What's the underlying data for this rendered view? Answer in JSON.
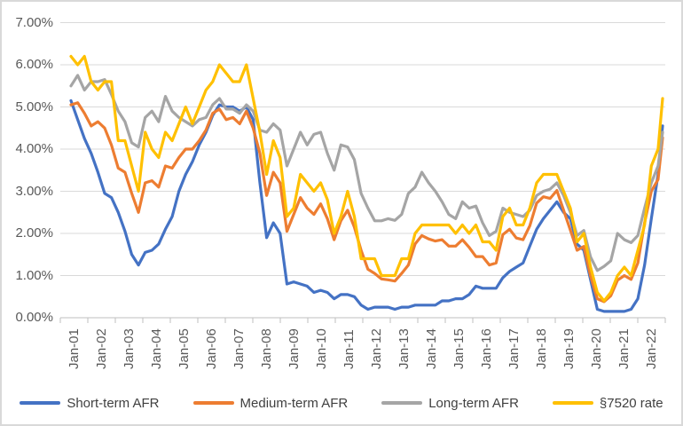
{
  "chart_data": {
    "type": "line",
    "title": "",
    "legend_position": "bottom",
    "gridlines": true,
    "y_axis": {
      "min": 0,
      "max": 7,
      "format": "percent",
      "tick_labels": [
        "7.00%",
        "6.00%",
        "5.00%",
        "4.00%",
        "3.00%",
        "2.00%",
        "1.00%",
        "0.00%"
      ]
    },
    "x_axis": {
      "tick_labels": [
        "Jan-01",
        "Jan-02",
        "Jan-03",
        "Jan-04",
        "Jan-05",
        "Jan-06",
        "Jan-07",
        "Jan-08",
        "Jan-09",
        "Jan-10",
        "Jan-11",
        "Jan-12",
        "Jan-13",
        "Jan-14",
        "Jan-15",
        "Jan-16",
        "Jan-17",
        "Jan-18",
        "Jan-19",
        "Jan-20",
        "Jan-21",
        "Jan-22"
      ]
    },
    "sample_labels": [
      "Jan-01",
      "Apr-01",
      "Jul-01",
      "Oct-01",
      "Jan-02",
      "Apr-02",
      "Jul-02",
      "Oct-02",
      "Jan-03",
      "Apr-03",
      "Jul-03",
      "Oct-03",
      "Jan-04",
      "Apr-04",
      "Jul-04",
      "Oct-04",
      "Jan-05",
      "Apr-05",
      "Jul-05",
      "Oct-05",
      "Jan-06",
      "Apr-06",
      "Jul-06",
      "Oct-06",
      "Jan-07",
      "Apr-07",
      "Jul-07",
      "Oct-07",
      "Jan-08",
      "Apr-08",
      "Jul-08",
      "Oct-08",
      "Jan-09",
      "Apr-09",
      "Jul-09",
      "Oct-09",
      "Jan-10",
      "Apr-10",
      "Jul-10",
      "Oct-10",
      "Jan-11",
      "Apr-11",
      "Jul-11",
      "Oct-11",
      "Jan-12",
      "Apr-12",
      "Jul-12",
      "Oct-12",
      "Jan-13",
      "Apr-13",
      "Jul-13",
      "Oct-13",
      "Jan-14",
      "Apr-14",
      "Jul-14",
      "Oct-14",
      "Jan-15",
      "Apr-15",
      "Jul-15",
      "Oct-15",
      "Jan-16",
      "Apr-16",
      "Jul-16",
      "Oct-16",
      "Jan-17",
      "Apr-17",
      "Jul-17",
      "Oct-17",
      "Jan-18",
      "Apr-18",
      "Jul-18",
      "Oct-18",
      "Jan-19",
      "Apr-19",
      "Jul-19",
      "Oct-19",
      "Jan-20",
      "Apr-20",
      "Jul-20",
      "Oct-20",
      "Jan-21",
      "Apr-21",
      "Jul-21",
      "Oct-21",
      "Jan-22",
      "Apr-22",
      "Jul-22",
      "Oct-22",
      "Dec-22"
    ],
    "series": [
      {
        "name": "Short-term AFR",
        "color": "#4472C4",
        "values": [
          5.15,
          4.7,
          4.25,
          3.9,
          3.45,
          2.95,
          2.85,
          2.5,
          2.05,
          1.5,
          1.25,
          1.55,
          1.6,
          1.75,
          2.1,
          2.4,
          3.0,
          3.4,
          3.7,
          4.1,
          4.4,
          4.8,
          5.05,
          5.0,
          5.0,
          4.9,
          5.0,
          4.7,
          3.2,
          1.9,
          2.25,
          2.0,
          0.8,
          0.85,
          0.8,
          0.75,
          0.6,
          0.65,
          0.6,
          0.45,
          0.55,
          0.55,
          0.5,
          0.3,
          0.2,
          0.25,
          0.25,
          0.25,
          0.2,
          0.25,
          0.25,
          0.3,
          0.3,
          0.3,
          0.3,
          0.4,
          0.4,
          0.45,
          0.45,
          0.55,
          0.75,
          0.7,
          0.7,
          0.7,
          0.95,
          1.1,
          1.2,
          1.3,
          1.7,
          2.1,
          2.35,
          2.55,
          2.75,
          2.5,
          2.35,
          1.75,
          1.6,
          0.9,
          0.2,
          0.15,
          0.15,
          0.15,
          0.15,
          0.2,
          0.45,
          1.25,
          2.35,
          3.4,
          4.55
        ]
      },
      {
        "name": "Medium-term AFR",
        "color": "#ED7D31",
        "values": [
          5.05,
          5.1,
          4.85,
          4.55,
          4.65,
          4.5,
          4.1,
          3.55,
          3.45,
          2.95,
          2.5,
          3.2,
          3.25,
          3.1,
          3.6,
          3.55,
          3.8,
          4.0,
          4.0,
          4.2,
          4.45,
          4.85,
          4.95,
          4.7,
          4.75,
          4.6,
          4.9,
          4.5,
          3.9,
          2.9,
          3.45,
          3.2,
          2.05,
          2.45,
          2.85,
          2.6,
          2.45,
          2.7,
          2.35,
          1.85,
          2.3,
          2.55,
          2.15,
          1.6,
          1.15,
          1.05,
          0.92,
          0.9,
          0.87,
          1.05,
          1.25,
          1.75,
          1.95,
          1.87,
          1.82,
          1.85,
          1.7,
          1.7,
          1.85,
          1.67,
          1.45,
          1.45,
          1.25,
          1.3,
          1.97,
          2.1,
          1.89,
          1.85,
          2.18,
          2.72,
          2.87,
          2.83,
          3.02,
          2.55,
          2.08,
          1.6,
          1.69,
          0.99,
          0.45,
          0.38,
          0.52,
          0.89,
          1.0,
          0.91,
          1.3,
          2.25,
          3.0,
          3.28,
          4.27
        ]
      },
      {
        "name": "Long-term AFR",
        "color": "#A5A5A5",
        "values": [
          5.5,
          5.75,
          5.4,
          5.6,
          5.6,
          5.65,
          5.3,
          4.9,
          4.65,
          4.15,
          4.05,
          4.75,
          4.9,
          4.65,
          5.25,
          4.9,
          4.75,
          4.65,
          4.55,
          4.7,
          4.75,
          5.05,
          5.2,
          4.95,
          4.95,
          4.85,
          5.05,
          4.9,
          4.45,
          4.4,
          4.6,
          4.45,
          3.6,
          4.0,
          4.4,
          4.1,
          4.35,
          4.4,
          3.9,
          3.5,
          4.1,
          4.05,
          3.75,
          2.95,
          2.6,
          2.3,
          2.3,
          2.35,
          2.31,
          2.45,
          2.95,
          3.1,
          3.45,
          3.2,
          3.0,
          2.75,
          2.45,
          2.35,
          2.75,
          2.6,
          2.65,
          2.25,
          1.95,
          2.05,
          2.6,
          2.5,
          2.45,
          2.4,
          2.55,
          2.9,
          3.0,
          3.05,
          3.2,
          2.9,
          2.5,
          1.95,
          2.07,
          1.44,
          1.12,
          1.22,
          1.35,
          2.0,
          1.85,
          1.78,
          1.95,
          2.6,
          3.2,
          3.6,
          4.4
        ]
      },
      {
        "name": "§7520 rate",
        "color": "#FFC000",
        "values": [
          6.2,
          6.0,
          6.2,
          5.6,
          5.4,
          5.6,
          5.6,
          4.2,
          4.2,
          3.6,
          3.0,
          4.4,
          4.0,
          3.8,
          4.4,
          4.2,
          4.6,
          5.0,
          4.6,
          5.0,
          5.4,
          5.6,
          6.0,
          5.8,
          5.6,
          5.6,
          6.0,
          5.2,
          4.4,
          3.4,
          4.2,
          3.8,
          2.4,
          2.6,
          3.4,
          3.2,
          3.0,
          3.2,
          2.8,
          2.0,
          2.4,
          3.0,
          2.4,
          1.4,
          1.4,
          1.4,
          1.0,
          1.0,
          1.0,
          1.4,
          1.4,
          2.0,
          2.2,
          2.2,
          2.2,
          2.2,
          2.2,
          2.0,
          2.2,
          2.0,
          2.2,
          1.8,
          1.8,
          1.6,
          2.4,
          2.6,
          2.2,
          2.2,
          2.6,
          3.2,
          3.4,
          3.4,
          3.4,
          3.0,
          2.6,
          1.8,
          2.0,
          1.2,
          0.6,
          0.4,
          0.6,
          1.0,
          1.2,
          1.0,
          1.6,
          2.2,
          3.6,
          4.0,
          5.2
        ]
      }
    ],
    "colors": {
      "gridline": "#D9D9D9",
      "axis_line": "#BFBFBF",
      "axis_label": "#595959",
      "legend_text": "#404040",
      "frame_border": "#D9D9D9"
    }
  }
}
